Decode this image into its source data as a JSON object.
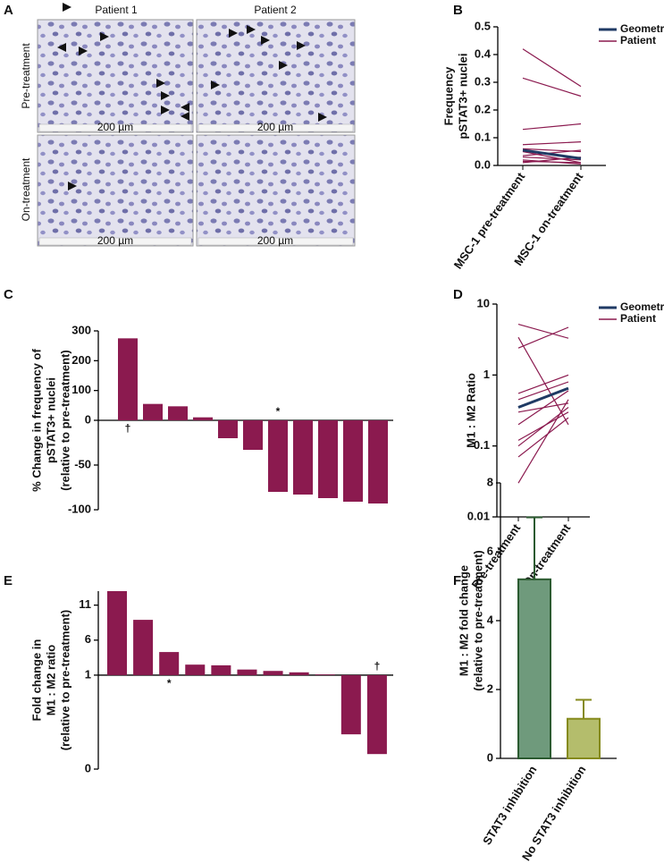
{
  "figure_a": {
    "panel": "A",
    "columns": [
      "Patient 1",
      "Patient 2"
    ],
    "rows": [
      "Pre-treatment",
      "On-treatment"
    ],
    "scale_bars": [
      "200 µm",
      "200 µm",
      "200 µm",
      "200 µm"
    ]
  },
  "chart_data": [
    {
      "panel": "B",
      "type": "line",
      "y_label": [
        "Frequency",
        "pSTAT3+ nuclei"
      ],
      "categories": [
        "MSC-1 pre-treatment",
        "MSC-1 on-treatment"
      ],
      "ylim": [
        0,
        0.5
      ],
      "yticks": [
        {
          "value": 0,
          "label": "0.0"
        },
        0.1,
        0.2,
        0.3,
        0.4,
        0.5
      ],
      "series": [
        {
          "name": "Geometric mean",
          "color": "#1f3a64",
          "values": [
            0.055,
            0.025
          ]
        },
        {
          "name": "Patient",
          "color": "#8b1a4f",
          "values": [
            [
              0.42,
              0.285
            ],
            [
              0.315,
              0.25
            ],
            [
              0.13,
              0.15
            ],
            [
              0.075,
              0.085
            ],
            [
              0.06,
              0.05
            ],
            [
              0.05,
              0.01
            ],
            [
              0.035,
              0.055
            ],
            [
              0.03,
              0.02
            ],
            [
              0.02,
              0.005
            ],
            [
              0.015,
              0.01
            ],
            [
              0.01,
              0.03
            ]
          ]
        }
      ]
    },
    {
      "panel": "C",
      "type": "bar",
      "y_label": [
        "% Change in frequency of",
        "pSTAT3+ nuclei",
        "(relative to pre-treatment)"
      ],
      "values": [
        275,
        55,
        47,
        10,
        -20,
        -33,
        -80,
        -83,
        -87,
        -91,
        -93
      ],
      "color": "#8b1a4f",
      "ylim": [
        -100,
        300
      ],
      "yticks": [
        -100,
        -50,
        0,
        100,
        200,
        300
      ],
      "baseline": 0,
      "annotations": [
        {
          "text": "†",
          "index": 0
        },
        {
          "text": "*",
          "index": 6
        }
      ]
    },
    {
      "panel": "D",
      "type": "line",
      "log": true,
      "y_label": [
        "M1 : M2 Ratio"
      ],
      "categories": [
        "Pre-treatment",
        "On-treatment"
      ],
      "ylim": [
        0.01,
        10
      ],
      "yticks": [
        0.01,
        0.1,
        1,
        10
      ],
      "series": [
        {
          "name": "Geometric mean",
          "color": "#1f3a64",
          "values": [
            0.35,
            0.65
          ]
        },
        {
          "name": "Patient",
          "color": "#8b1a4f",
          "values": [
            [
              5.2,
              3.3
            ],
            [
              3.4,
              0.2
            ],
            [
              2.4,
              4.7
            ],
            [
              0.55,
              1.0
            ],
            [
              0.45,
              0.8
            ],
            [
              0.3,
              0.4
            ],
            [
              0.2,
              0.6
            ],
            [
              0.12,
              0.3
            ],
            [
              0.1,
              0.35
            ],
            [
              0.07,
              0.25
            ],
            [
              0.03,
              0.45
            ]
          ]
        }
      ]
    },
    {
      "panel": "E",
      "type": "bar",
      "y_label": [
        "Fold change in",
        "M1 : M2 ratio",
        "(relative to pre-treatment)"
      ],
      "values": [
        13,
        8.9,
        4.3,
        2.5,
        2.4,
        1.8,
        1.6,
        1.4,
        1.1,
        0.37,
        0.16
      ],
      "color": "#8b1a4f",
      "ylim": [
        0,
        13
      ],
      "yticks": [
        0,
        1,
        6,
        11
      ],
      "baseline": 1,
      "annotations": [
        {
          "text": "*",
          "index": 2
        },
        {
          "text": "†",
          "index": 10
        }
      ]
    },
    {
      "panel": "F",
      "type": "errorbar",
      "y_label": [
        "M1 : M2 fold change",
        "(relative to pre-treatment)"
      ],
      "categories": [
        "STAT3 inhibition",
        "No STAT3 inhibition"
      ],
      "values": [
        5.2,
        1.15
      ],
      "errors": [
        1.8,
        0.55
      ],
      "colors": [
        "#6f9a7c",
        "#b4bd6c"
      ],
      "edge_colors": [
        "#2b5a30",
        "#858a1c"
      ],
      "ylim": [
        0,
        8
      ],
      "yticks": [
        0,
        2,
        4,
        6,
        8
      ]
    }
  ]
}
